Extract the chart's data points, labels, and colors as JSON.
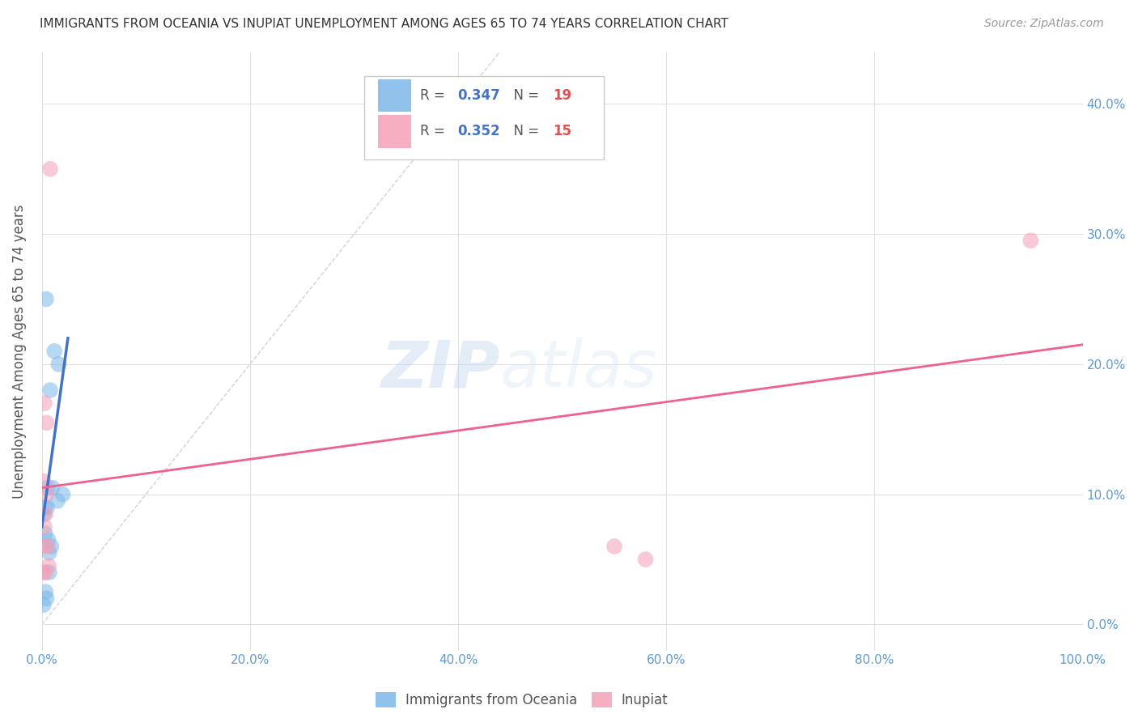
{
  "title": "IMMIGRANTS FROM OCEANIA VS INUPIAT UNEMPLOYMENT AMONG AGES 65 TO 74 YEARS CORRELATION CHART",
  "source": "Source: ZipAtlas.com",
  "ylabel": "Unemployment Among Ages 65 to 74 years",
  "xlabel_ticks": [
    "0.0%",
    "20.0%",
    "40.0%",
    "60.0%",
    "80.0%",
    "100.0%"
  ],
  "xlabel_vals": [
    0,
    20,
    40,
    60,
    80,
    100
  ],
  "ylabel_ticks_right": [
    "40.0%",
    "30.0%",
    "20.0%",
    "10.0%",
    "0.0%"
  ],
  "ylabel_ticks_right_vals": [
    40,
    30,
    20,
    10,
    0
  ],
  "ylabel_ticks_left": [
    "0.0%",
    "10.0%",
    "20.0%",
    "30.0%",
    "40.0%"
  ],
  "ylabel_ticks_left_vals": [
    0,
    10,
    20,
    30,
    40
  ],
  "xlim": [
    0,
    100
  ],
  "ylim": [
    -2,
    44
  ],
  "blue_scatter_x": [
    0.4,
    1.2,
    0.8,
    1.6,
    0.2,
    0.3,
    0.5,
    0.6,
    0.7,
    0.9,
    1.5,
    2.0,
    0.15,
    0.35,
    0.45,
    0.25,
    0.55,
    1.0,
    0.7
  ],
  "blue_scatter_y": [
    25.0,
    21.0,
    18.0,
    20.0,
    8.5,
    7.0,
    9.0,
    6.5,
    5.5,
    6.0,
    9.5,
    10.0,
    1.5,
    2.5,
    2.0,
    9.0,
    10.5,
    10.5,
    4.0
  ],
  "pink_scatter_x": [
    0.8,
    0.25,
    0.45,
    0.15,
    0.35,
    0.25,
    0.55,
    0.65,
    0.15,
    0.45,
    0.25,
    0.35,
    55.0,
    58.0,
    95.0
  ],
  "pink_scatter_y": [
    35.0,
    17.0,
    15.5,
    11.0,
    8.5,
    7.5,
    6.0,
    4.5,
    4.0,
    10.0,
    6.0,
    4.0,
    6.0,
    5.0,
    29.5
  ],
  "blue_line_x": [
    0.0,
    2.5
  ],
  "blue_line_y": [
    7.5,
    22.0
  ],
  "pink_line_x": [
    0.0,
    100.0
  ],
  "pink_line_y": [
    10.5,
    21.5
  ],
  "diag_line_x": [
    0.0,
    44.0
  ],
  "diag_line_y": [
    0.0,
    44.0
  ],
  "scatter_alpha": 0.55,
  "scatter_size": 200,
  "blue_color": "#7db8e8",
  "pink_color": "#f4a0b8",
  "blue_line_color": "#4472c4",
  "pink_line_color": "#f06090",
  "diag_line_color": "#c0c8d8",
  "watermark_zip": "ZIP",
  "watermark_atlas": "atlas",
  "background_color": "#ffffff",
  "grid_color": "#e0e0e0",
  "r_color": "#4472c4",
  "n_color": "#e05050",
  "legend_r1": "0.347",
  "legend_n1": "19",
  "legend_r2": "0.352",
  "legend_n2": "15"
}
